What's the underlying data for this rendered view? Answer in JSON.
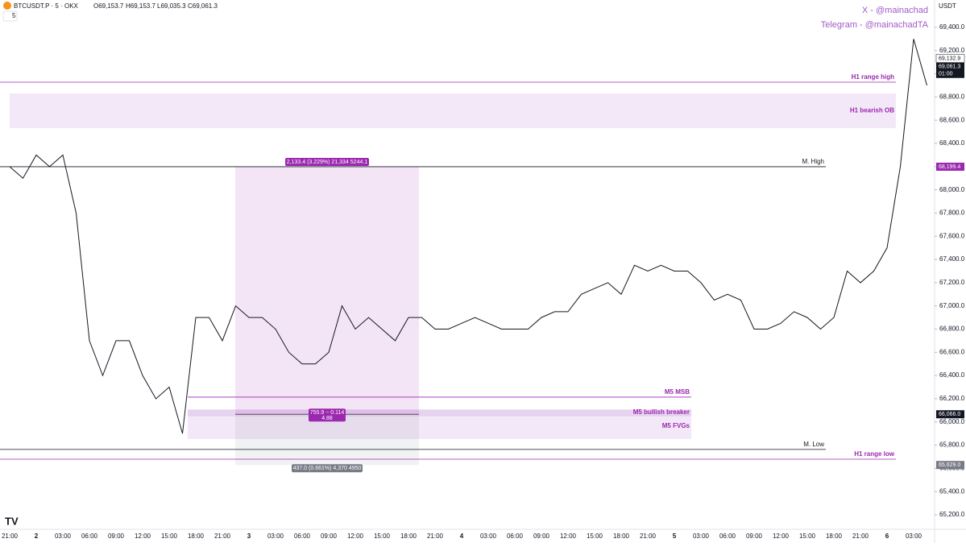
{
  "header": {
    "symbol": "BTCUSDT.P · 5 · OKX",
    "open": "O69,153.7",
    "high": "H69,153.7",
    "low": "L69,035.3",
    "close": "C69,061.3",
    "interval": "5",
    "currency": "USDT"
  },
  "watermark": [
    "X - @mainachad",
    "Telegram - @mainachadTA"
  ],
  "chart_data": {
    "type": "line",
    "color": "#131722",
    "categories": [
      "21:00",
      null,
      "2",
      null,
      "03:00",
      null,
      "06:00",
      null,
      "09:00",
      null,
      "12:00",
      null,
      "15:00",
      null,
      "18:00",
      null,
      "21:00",
      null,
      "3",
      null,
      "03:00",
      null,
      "06:00",
      null,
      "09:00",
      null,
      "12:00",
      null,
      "15:00",
      null,
      "18:00",
      null,
      "21:00",
      null,
      "4",
      null,
      "03:00",
      null,
      "06:00",
      null,
      "09:00",
      null,
      "12:00",
      null,
      "15:00",
      null,
      "18:00",
      null,
      "21:00",
      null,
      "5",
      null,
      "03:00",
      null,
      "06:00",
      null,
      "09:00",
      null,
      "12:00",
      null,
      "15:00",
      null,
      "18:00",
      null,
      "21:00",
      null,
      "6",
      null,
      "03:00",
      null
    ],
    "values": [
      68200,
      68100,
      68300,
      68200,
      68300,
      67800,
      66700,
      66400,
      66700,
      66700,
      66400,
      66200,
      66300,
      65900,
      66900,
      66900,
      66700,
      67000,
      66900,
      66900,
      66800,
      66600,
      66500,
      66500,
      66600,
      67000,
      66800,
      66900,
      66800,
      66700,
      66900,
      66900,
      66800,
      66800,
      66850,
      66900,
      66850,
      66800,
      66800,
      66800,
      66900,
      66950,
      66950,
      67100,
      67150,
      67200,
      67100,
      67350,
      67300,
      67350,
      67300,
      67300,
      67200,
      67050,
      67100,
      67050,
      66800,
      66800,
      66850,
      66950,
      66900,
      66800,
      66900,
      67300,
      67200,
      67300,
      67500,
      68200,
      69300,
      68900
    ],
    "ylim": [
      65075,
      69636
    ],
    "yticks": [
      {
        "value": 65200,
        "label": "65,200.0"
      },
      {
        "value": 65400,
        "label": "65,400.0"
      },
      {
        "value": 65600,
        "label": "65,600.0"
      },
      {
        "value": 65800,
        "label": "65,800.0"
      },
      {
        "value": 66000,
        "label": "66,000.0"
      },
      {
        "value": 66200,
        "label": "66,200.0"
      },
      {
        "value": 66400,
        "label": "66,400.0"
      },
      {
        "value": 66600,
        "label": "66,600.0"
      },
      {
        "value": 66800,
        "label": "66,800.0"
      },
      {
        "value": 67000,
        "label": "67,000.0"
      },
      {
        "value": 67200,
        "label": "67,200.0"
      },
      {
        "value": 67400,
        "label": "67,400.0"
      },
      {
        "value": 67600,
        "label": "67,600.0"
      },
      {
        "value": 67800,
        "label": "67,800.0"
      },
      {
        "value": 68000,
        "label": "68,000.0"
      },
      {
        "value": 68200,
        "label": "68,200.0"
      },
      {
        "value": 68400,
        "label": "68,400.0"
      },
      {
        "value": 68600,
        "label": "68,600.0"
      },
      {
        "value": 68800,
        "label": "68,800.0"
      },
      {
        "value": 69000,
        "label": "69,000.0"
      },
      {
        "value": 69200,
        "label": "69,200.0"
      },
      {
        "value": 69400,
        "label": "69,400.0"
      }
    ],
    "levels": [
      {
        "label": "H1 range high",
        "value": 68928,
        "color": "#9c27b0"
      },
      {
        "label": "M. High",
        "value": 68199.4,
        "color": "#131722"
      },
      {
        "label": "M5 MSB",
        "value": 66214,
        "color": "#9c27b0"
      },
      {
        "label": "M. Low",
        "value": 65763,
        "color": "#131722"
      },
      {
        "label": "H1 range low",
        "value": 65679,
        "color": "#9c27b0"
      }
    ],
    "zones": [
      {
        "label": "H1 bearish OB",
        "low": 68532,
        "high": 68831
      },
      {
        "label": "M5 bullish breaker",
        "low": 66046,
        "high": 66107
      },
      {
        "label": "M5 FVGs",
        "low": 65853,
        "high": 66046
      }
    ],
    "measurements": [
      {
        "label": "2,133.4 (3.229%) 21,334 5244.1",
        "from": 66066,
        "to": 68199.4,
        "color": "#9c27b0"
      },
      {
        "label": "437.0 (0.661%) 4,370 4950",
        "from": 66066,
        "to": 65629,
        "color": "#787b86"
      }
    ],
    "midline": {
      "value": 66066,
      "label": "755.9 − 0.114",
      "sublabel": "4.88"
    },
    "price_labels": [
      {
        "value": 69132.9,
        "label": "69,132.9",
        "style": "light"
      },
      {
        "value": 69061.3,
        "label": "69,061.3",
        "sublabel": "01:00",
        "style": "dark"
      },
      {
        "value": 68199.4,
        "label": "68,199.4",
        "style": "purple"
      },
      {
        "value": 66066,
        "label": "66,066.0",
        "style": "dark"
      },
      {
        "value": 65629,
        "label": "65,629.0",
        "style": "grey"
      }
    ]
  }
}
